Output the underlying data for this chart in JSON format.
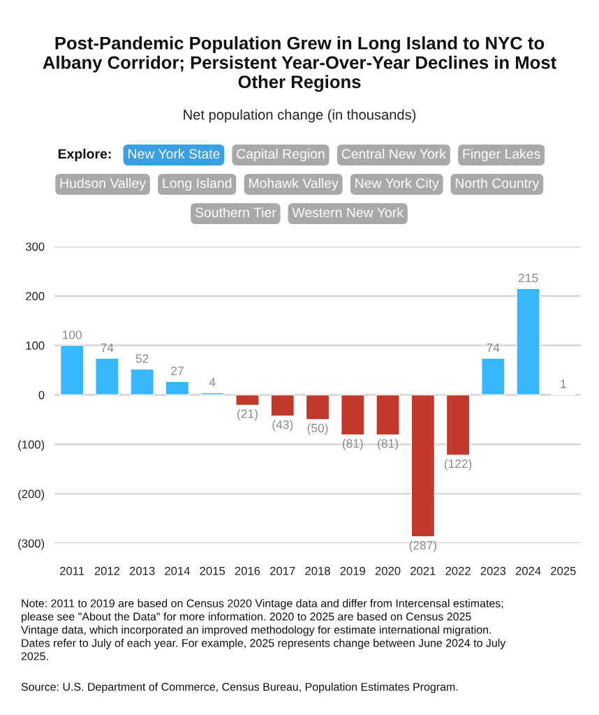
{
  "chart_data": {
    "type": "bar",
    "title": "Post-Pandemic Population Grew in Long Island to NYC to Albany Corridor; Persistent Year-Over-Year Declines in Most Other Regions",
    "subtitle": "Net population change (in thousands)",
    "categories": [
      "2011",
      "2012",
      "2013",
      "2014",
      "2015",
      "2016",
      "2017",
      "2018",
      "2019",
      "2020",
      "2021",
      "2022",
      "2023",
      "2024",
      "2025"
    ],
    "values": [
      100,
      74,
      52,
      27,
      4,
      -21,
      -43,
      -50,
      -81,
      -81,
      -287,
      -122,
      74,
      215,
      1
    ],
    "colors": [
      "#38b6ff",
      "#38b6ff",
      "#38b6ff",
      "#38b6ff",
      "#38b6ff",
      "#c0392b",
      "#c0392b",
      "#c0392b",
      "#c0392b",
      "#c0392b",
      "#c0392b",
      "#c0392b",
      "#38b6ff",
      "#38b6ff",
      "#38b6ff"
    ],
    "value_labels": [
      "100",
      "74",
      "52",
      "27",
      "4",
      "(21)",
      "(43)",
      "(50)",
      "(81)",
      "(81)",
      "(287)",
      "(122)",
      "74",
      "215",
      "1"
    ],
    "ylim": [
      -300,
      300
    ],
    "yticks": [
      {
        "value": -300,
        "label": "(300)"
      },
      {
        "value": -200,
        "label": "(200)"
      },
      {
        "value": -100,
        "label": "(100)"
      },
      0,
      100,
      200,
      300
    ],
    "grid": "y",
    "annotations": [
      "Explore:",
      "New York State",
      "Capital Region",
      "Central New York",
      "Finger Lakes",
      "Hudson Valley",
      "Long Island",
      "Mohawk Valley",
      "New York City",
      "North Country",
      "Southern Tier",
      "Western New York",
      "Note: 2011 to 2019 are based on Census 2020 Vintage data and differ from Intercensal estimates; please see \"About the Data\" for more information. 2020 to 2025 are based on Census 2025 Vintage data, which incorporated an improved methodology for estimate international migration. Dates refer to July of each year. For example, 2025 represents change between June 2024 to July 2025.",
      "Source: U.S. Department of Commerce, Census Bureau, Population Estimates Program."
    ]
  }
}
